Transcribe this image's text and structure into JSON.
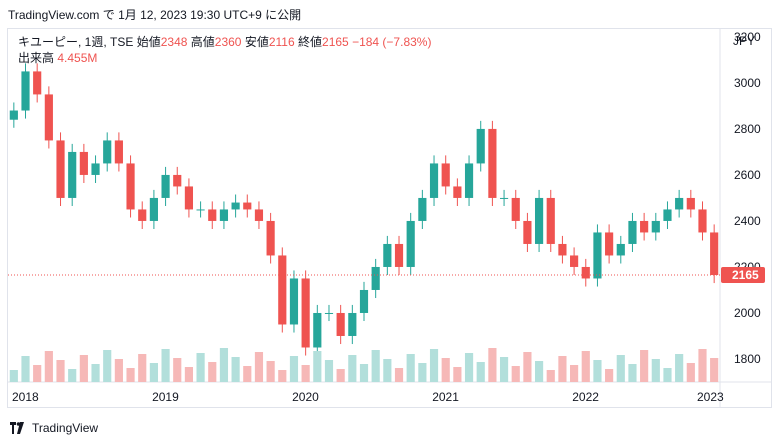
{
  "header": {
    "source": "TradingView.com",
    "datetime_text": "で 1月 12, 2023 19:30 UTC+9 に公開"
  },
  "legend": {
    "symbol": "キユーピー, 1週, TSE",
    "open_label": "始値",
    "open": "2348",
    "high_label": "高値",
    "high": "2360",
    "low_label": "安値",
    "low": "2116",
    "close_label": "終値",
    "close": "2165",
    "change": "−184 (−7.83%)",
    "volume_label": "出来高",
    "volume": "4.455M"
  },
  "currency": "JPY",
  "price_badge": "2165",
  "footer": {
    "brand": "TradingView"
  },
  "colors": {
    "up": "#26a69a",
    "down": "#ef5350",
    "vol_up": "#b2dfdb",
    "vol_down": "#f6b8b7"
  },
  "chart_data": {
    "type": "candlestick",
    "x_ticks": [
      "2018",
      "2019",
      "2020",
      "2021",
      "2022",
      "2023"
    ],
    "y_ticks": [
      1800,
      2000,
      2200,
      2400,
      2600,
      2800,
      3000,
      3200
    ],
    "ylim": [
      1700,
      3230
    ],
    "last_price": 2165,
    "series": [
      {
        "name": "close",
        "x": [
          "2018-01",
          "2018-02",
          "2018-03",
          "2018-04",
          "2018-05",
          "2018-06",
          "2018-07",
          "2018-08",
          "2018-09",
          "2018-10",
          "2018-11",
          "2018-12",
          "2019-01",
          "2019-02",
          "2019-03",
          "2019-04",
          "2019-05",
          "2019-06",
          "2019-07",
          "2019-08",
          "2019-09",
          "2019-10",
          "2019-11",
          "2019-12",
          "2020-01",
          "2020-02",
          "2020-03",
          "2020-04",
          "2020-05",
          "2020-06",
          "2020-07",
          "2020-08",
          "2020-09",
          "2020-10",
          "2020-11",
          "2020-12",
          "2021-01",
          "2021-02",
          "2021-03",
          "2021-04",
          "2021-05",
          "2021-06",
          "2021-07",
          "2021-08",
          "2021-09",
          "2021-10",
          "2021-11",
          "2021-12",
          "2022-01",
          "2022-02",
          "2022-03",
          "2022-04",
          "2022-05",
          "2022-06",
          "2022-07",
          "2022-08",
          "2022-09",
          "2022-10",
          "2022-11",
          "2022-12",
          "2023-01"
        ],
        "values": [
          2880,
          3050,
          2950,
          2750,
          2500,
          2700,
          2600,
          2650,
          2750,
          2650,
          2450,
          2400,
          2500,
          2600,
          2550,
          2450,
          2450,
          2400,
          2450,
          2480,
          2450,
          2400,
          2250,
          1950,
          2150,
          1850,
          2000,
          2000,
          1900,
          2000,
          2100,
          2200,
          2300,
          2200,
          2400,
          2500,
          2650,
          2550,
          2500,
          2650,
          2800,
          2500,
          2500,
          2400,
          2300,
          2500,
          2300,
          2250,
          2200,
          2150,
          2350,
          2250,
          2300,
          2400,
          2350,
          2400,
          2450,
          2500,
          2450,
          2350,
          2165
        ]
      }
    ]
  }
}
